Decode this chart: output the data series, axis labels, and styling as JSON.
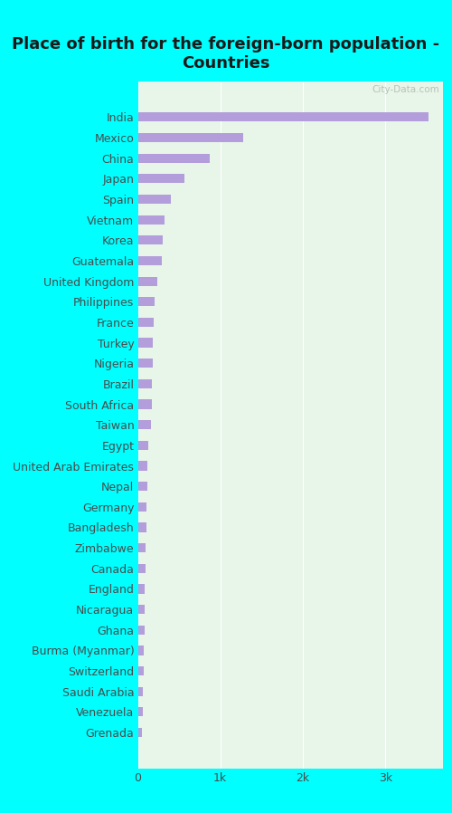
{
  "title": "Place of birth for the foreign-born population -\nCountries",
  "background_color": "#00FFFF",
  "plot_bg_color": "#e8f5e9",
  "bar_color": "#b39ddb",
  "categories": [
    "India",
    "Mexico",
    "China",
    "Japan",
    "Spain",
    "Vietnam",
    "Korea",
    "Guatemala",
    "United Kingdom",
    "Philippines",
    "France",
    "Turkey",
    "Nigeria",
    "Brazil",
    "South Africa",
    "Taiwan",
    "Egypt",
    "United Arab Emirates",
    "Nepal",
    "Germany",
    "Bangladesh",
    "Zimbabwe",
    "Canada",
    "England",
    "Nicaragua",
    "Ghana",
    "Burma (Myanmar)",
    "Switzerland",
    "Saudi Arabia",
    "Venezuela",
    "Grenada"
  ],
  "values": [
    3520,
    1280,
    870,
    560,
    400,
    320,
    305,
    295,
    240,
    200,
    195,
    185,
    180,
    175,
    165,
    155,
    125,
    115,
    110,
    105,
    100,
    95,
    90,
    85,
    82,
    78,
    73,
    68,
    63,
    58,
    53
  ],
  "xlim": [
    0,
    3700
  ],
  "xticks": [
    0,
    1000,
    2000,
    3000
  ],
  "xticklabels": [
    "0",
    "1k",
    "2k",
    "3k"
  ],
  "title_fontsize": 13,
  "tick_label_fontsize": 9,
  "axis_label_color": "#4a4a4a",
  "watermark": "City-Data.com"
}
